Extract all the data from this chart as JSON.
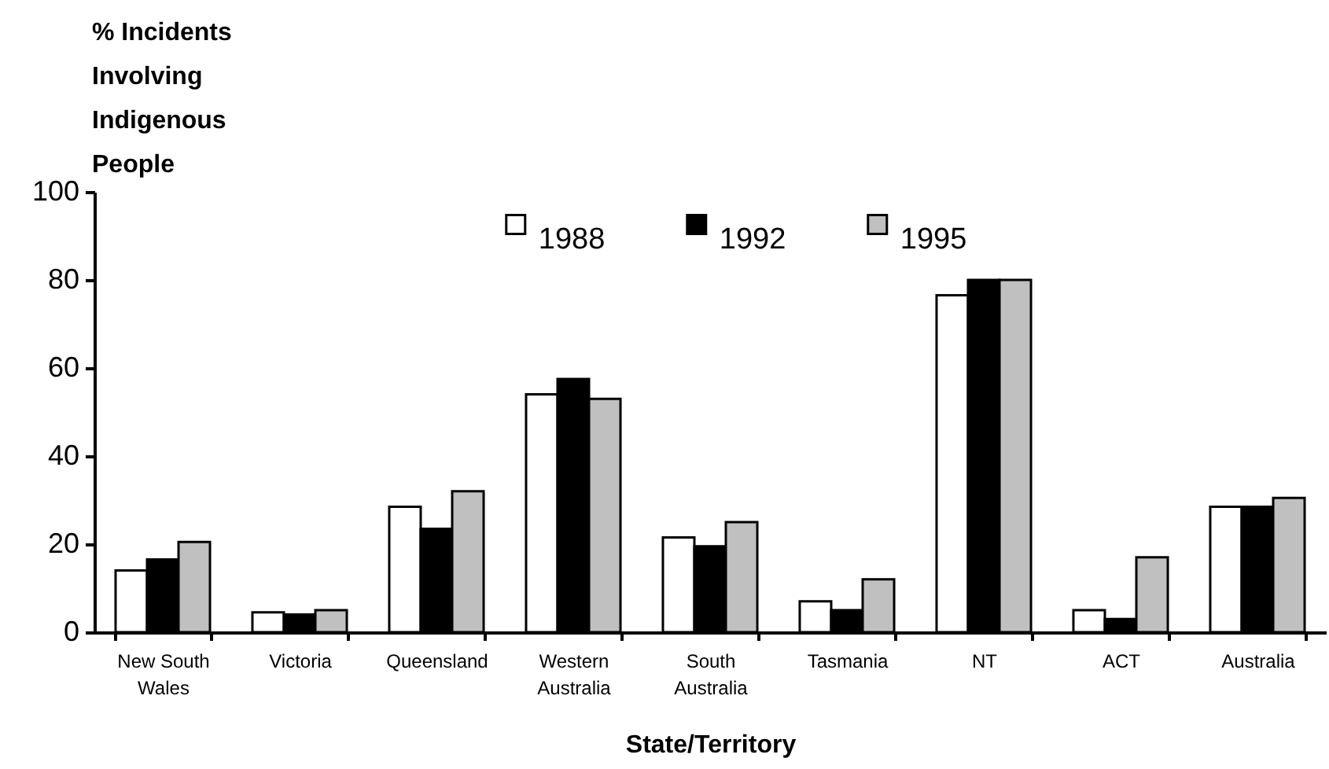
{
  "chart_data": {
    "type": "bar",
    "xlabel": "State/Territory",
    "ylabel": "% Incidents Involving Indigenous People",
    "categories": [
      "New South Wales",
      "Victoria",
      "Queensland",
      "Western Australia",
      "South Australia",
      "Tasmania",
      "NT",
      "ACT",
      "Australia"
    ],
    "series": [
      {
        "name": "1988",
        "color": "#ffffff",
        "values": [
          14,
          4.5,
          28.5,
          54,
          21.5,
          7,
          76.5,
          5,
          28.5
        ]
      },
      {
        "name": "1992",
        "color": "#000000",
        "values": [
          16.5,
          4,
          23.5,
          57.5,
          19.5,
          5,
          80,
          3,
          28.5
        ]
      },
      {
        "name": "1995",
        "color": "#c0c0c0",
        "values": [
          20.5,
          5,
          32,
          53,
          25,
          12,
          80,
          17,
          30.5
        ]
      }
    ],
    "ylim": [
      0,
      100
    ],
    "yticks": [
      0,
      20,
      40,
      60,
      80,
      100
    ],
    "legend": "top"
  }
}
